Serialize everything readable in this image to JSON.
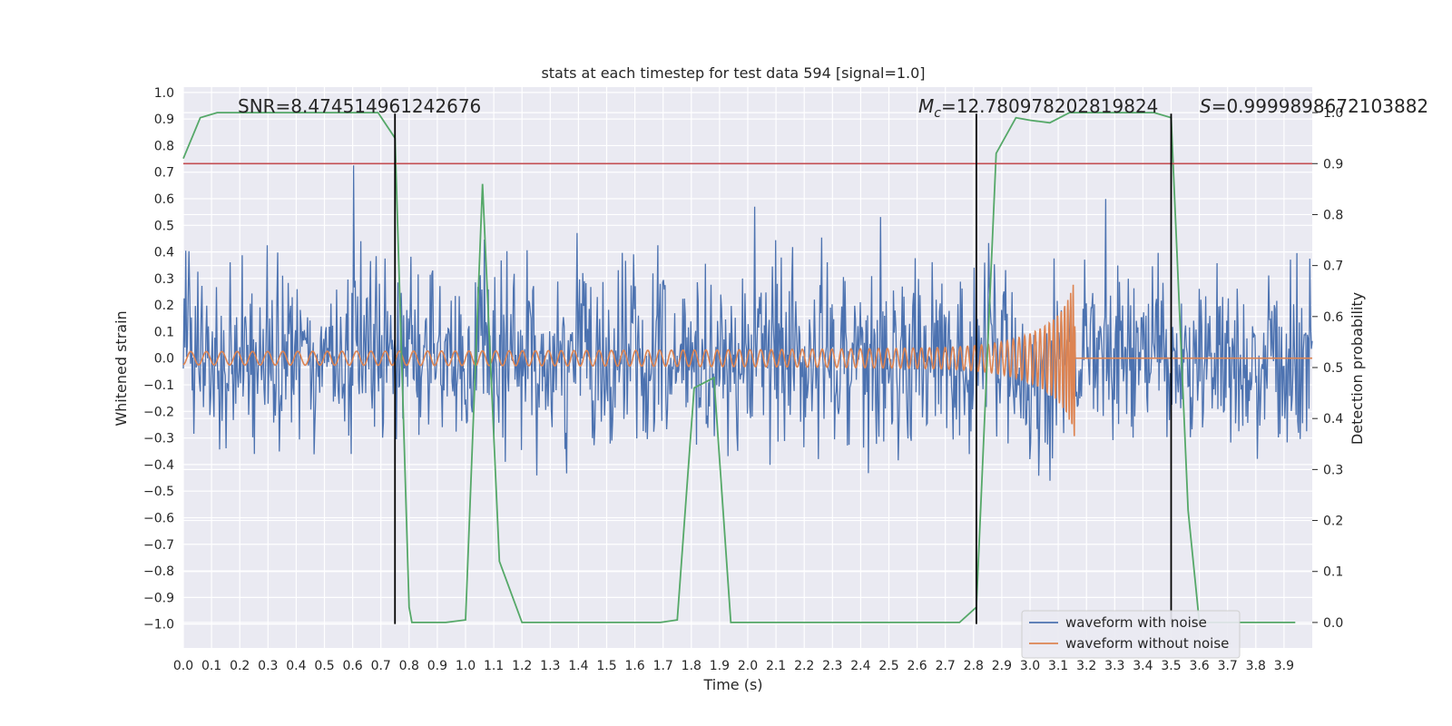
{
  "chart_data": {
    "type": "line",
    "title": "stats at each timestep for test data 594 [signal=1.0]",
    "xlabel": "Time (s)",
    "ylabel_left": "Whitened strain",
    "ylabel_right": "Detection probability",
    "xlim": [
      0.0,
      4.0
    ],
    "ylim_left": [
      -1.09,
      1.02
    ],
    "ylim_right": [
      -0.05,
      1.05
    ],
    "x_ticks": [
      0.0,
      0.1,
      0.2,
      0.3,
      0.4,
      0.5,
      0.6,
      0.7,
      0.8,
      0.9,
      1.0,
      1.1,
      1.2,
      1.3,
      1.4,
      1.5,
      1.6,
      1.7,
      1.8,
      1.9,
      2.0,
      2.1,
      2.2,
      2.3,
      2.4,
      2.5,
      2.6,
      2.7,
      2.8,
      2.9,
      3.0,
      3.1,
      3.2,
      3.3,
      3.4,
      3.5,
      3.6,
      3.7,
      3.8,
      3.9
    ],
    "x_tick_labels": [
      "0.0",
      "0.1",
      "0.2",
      "0.3",
      "0.4",
      "0.5",
      "0.6",
      "0.7",
      "0.8",
      "0.9",
      "1.0",
      "1.1",
      "1.2",
      "1.3",
      "1.4",
      "1.5",
      "1.6",
      "1.7",
      "1.8",
      "1.9",
      "2.0",
      "2.1",
      "2.2",
      "2.3",
      "2.4",
      "2.5",
      "2.6",
      "2.7",
      "2.8",
      "2.9",
      "3.0",
      "3.1",
      "3.2",
      "3.3",
      "3.4",
      "3.5",
      "3.6",
      "3.7",
      "3.8",
      "3.9"
    ],
    "y_left_ticks": [
      1.0,
      0.9,
      0.8,
      0.7,
      0.6,
      0.5,
      0.4,
      0.3,
      0.2,
      0.1,
      0.0,
      -0.1,
      -0.2,
      -0.3,
      -0.4,
      -0.5,
      -0.6,
      -0.7,
      -0.8,
      -0.9,
      -1.0
    ],
    "y_left_tick_labels": [
      "1.0",
      "0.9",
      "0.8",
      "0.7",
      "0.6",
      "0.5",
      "0.4",
      "0.3",
      "0.2",
      "0.1",
      "0.0",
      "−0.1",
      "−0.2",
      "−0.3",
      "−0.4",
      "−0.5",
      "−0.6",
      "−0.7",
      "−0.8",
      "−0.9",
      "−1.0"
    ],
    "y_right_ticks": [
      1.0,
      0.9,
      0.8,
      0.7,
      0.6,
      0.5,
      0.4,
      0.3,
      0.2,
      0.1,
      0.0
    ],
    "y_right_tick_labels": [
      "1.0",
      "0.9",
      "0.8",
      "0.7",
      "0.6",
      "0.5",
      "0.4",
      "0.3",
      "0.2",
      "0.1",
      "0.0"
    ],
    "threshold_right": 0.9,
    "vertical_lines_x": [
      0.75,
      2.81,
      3.5
    ],
    "vertical_line_range_left": [
      -1.0,
      0.92
    ],
    "annotations": {
      "snr": "SNR=8.474514961242676",
      "mc_symbol": "M",
      "mc_subscript": "c",
      "mc_value": "=12.780978202819824",
      "s_symbol": "S",
      "s_value": "=0.9999898672103882"
    },
    "series": [
      {
        "name": "waveform with noise",
        "color": "#4c72b0",
        "axis": "left",
        "kind": "noise",
        "x_range": [
          0.0,
          4.0
        ],
        "samples": 1400,
        "std": 0.24,
        "seed": 594
      },
      {
        "name": "waveform without noise",
        "color": "#dd8452",
        "axis": "left",
        "kind": "chirp",
        "t_start": 0.0,
        "t_merge": 3.16,
        "f_start": 18,
        "amp_start": 0.025,
        "amp_merge": 0.38,
        "post_merge_value": 0.0
      },
      {
        "name": "detection probability",
        "color": "#55a868",
        "axis": "right",
        "kind": "line",
        "x": [
          0.0,
          0.06,
          0.12,
          0.2,
          0.3,
          0.4,
          0.5,
          0.6,
          0.69,
          0.75,
          0.8,
          0.81,
          0.93,
          1.0,
          1.06,
          1.12,
          1.2,
          1.3,
          1.4,
          1.5,
          1.6,
          1.69,
          1.75,
          1.81,
          1.88,
          1.94,
          2.0,
          2.2,
          2.4,
          2.6,
          2.75,
          2.81,
          2.88,
          2.95,
          3.0,
          3.07,
          3.14,
          3.2,
          3.3,
          3.4,
          3.44,
          3.5,
          3.56,
          3.6,
          3.7,
          3.8,
          3.9,
          3.94
        ],
        "y": [
          0.91,
          0.99,
          1.0,
          1.0,
          1.0,
          1.0,
          1.0,
          1.0,
          1.0,
          0.95,
          0.03,
          0.0,
          0.0,
          0.005,
          0.86,
          0.12,
          0.0,
          0.0,
          0.0,
          0.0,
          0.0,
          0.0,
          0.005,
          0.46,
          0.48,
          0.0,
          0.0,
          0.0,
          0.0,
          0.0,
          0.0,
          0.03,
          0.92,
          0.99,
          0.985,
          0.98,
          1.0,
          1.0,
          1.0,
          1.0,
          1.0,
          0.99,
          0.22,
          0.0,
          0.0,
          0.0,
          0.0,
          0.0
        ]
      }
    ],
    "threshold_color": "#c44e52",
    "vline_color": "#000000",
    "legend_location": "lower-right",
    "legend_entries": [
      "waveform with noise",
      "waveform without noise"
    ],
    "grid": true
  }
}
